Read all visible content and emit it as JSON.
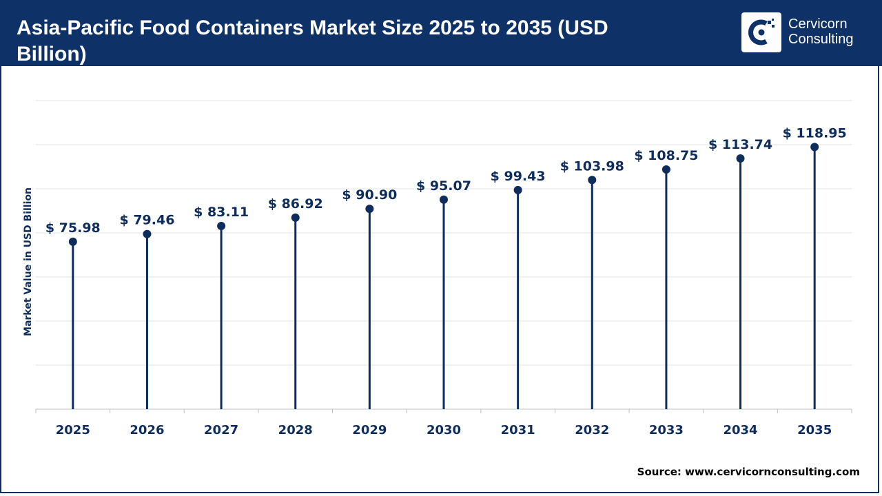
{
  "header": {
    "title": "Asia-Pacific Food Containers Market Size 2025 to 2035 (USD Billion)",
    "logo_line1": "Cervicorn",
    "logo_line2": "Consulting"
  },
  "source": "Source: www.cervicornconsulting.com",
  "colors": {
    "header_bg": "#0e3268",
    "series": "#0f2d5c",
    "grid": "#e6e6e6"
  },
  "chart_data": {
    "type": "lollipop",
    "title": "Asia-Pacific Food Containers Market Size 2025 to 2035 (USD Billion)",
    "ylabel": "Market Value in USD Billion",
    "xlabel": "",
    "categories": [
      "2025",
      "2026",
      "2027",
      "2028",
      "2029",
      "2030",
      "2031",
      "2032",
      "2033",
      "2034",
      "2035"
    ],
    "values": [
      75.98,
      79.46,
      83.11,
      86.92,
      90.9,
      95.07,
      99.43,
      103.98,
      108.75,
      113.74,
      118.95
    ],
    "labels": [
      "$ 75.98",
      "$ 79.46",
      "$ 83.11",
      "$ 86.92",
      "$ 90.90",
      "$ 95.07",
      "$ 99.43",
      "$ 103.98",
      "$ 108.75",
      "$ 113.74",
      "$ 118.95"
    ],
    "ylim": [
      0,
      140
    ],
    "grid": true,
    "y_ticks_shown": false
  }
}
